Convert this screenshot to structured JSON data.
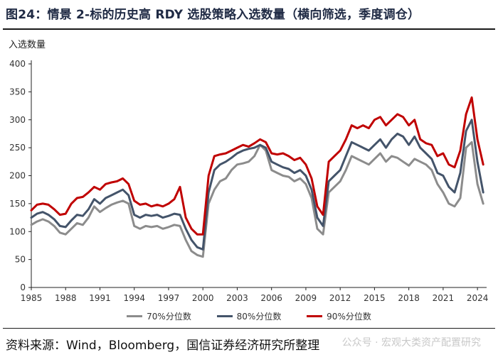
{
  "header": {
    "title": "图24：情景 2-标的历史高 RDY 选股策略入选数量（横向筛选，季度调仓）"
  },
  "footer": {
    "source": "资料来源：Wind，Bloomberg，国信证券经济研究所整理",
    "watermark": "公众号 · 宏观大类资产配置研究"
  },
  "colors": {
    "p70": "#8c8c8c",
    "p80": "#44546a",
    "p90": "#c00000"
  },
  "chart_data": {
    "type": "line",
    "title": "",
    "ylabel": "入选数量",
    "xlabel": "",
    "ylim": [
      0,
      400
    ],
    "yticks": [
      "0",
      "50",
      "100",
      "150",
      "200",
      "250",
      "300",
      "350",
      "400"
    ],
    "xlim": [
      1985,
      2024.8
    ],
    "xticks": [
      "1985",
      "1988",
      "1991",
      "1994",
      "1997",
      "2000",
      "2003",
      "2006",
      "2009",
      "2012",
      "2015",
      "2018",
      "2021",
      "2024"
    ],
    "grid": false,
    "legend_position": "bottom",
    "series": [
      {
        "name": "70%分位数",
        "color": "#8c8c8c",
        "x": [
          1985,
          1985.5,
          1986,
          1986.5,
          1987,
          1987.5,
          1988,
          1988.5,
          1989,
          1989.5,
          1990,
          1990.5,
          1991,
          1991.5,
          1992,
          1992.5,
          1993,
          1993.5,
          1994,
          1994.5,
          1995,
          1995.5,
          1996,
          1996.5,
          1997,
          1997.5,
          1998,
          1998.5,
          1999,
          1999.5,
          2000,
          2000.5,
          2001,
          2001.5,
          2002,
          2002.5,
          2003,
          2003.5,
          2004,
          2004.5,
          2005,
          2005.5,
          2006,
          2006.5,
          2007,
          2007.5,
          2008,
          2008.5,
          2009,
          2009.5,
          2010,
          2010.5,
          2011,
          2011.5,
          2012,
          2012.5,
          2013,
          2013.5,
          2014,
          2014.5,
          2015,
          2015.5,
          2016,
          2016.5,
          2017,
          2017.5,
          2018,
          2018.5,
          2019,
          2019.5,
          2020,
          2020.5,
          2021,
          2021.5,
          2022,
          2022.5,
          2023,
          2023.5,
          2024,
          2024.5
        ],
        "values": [
          112,
          118,
          122,
          118,
          110,
          98,
          95,
          105,
          115,
          112,
          125,
          145,
          135,
          142,
          148,
          152,
          155,
          150,
          110,
          105,
          110,
          108,
          110,
          105,
          108,
          112,
          110,
          85,
          65,
          58,
          55,
          150,
          175,
          190,
          195,
          210,
          220,
          222,
          225,
          235,
          255,
          245,
          210,
          205,
          200,
          198,
          190,
          195,
          185,
          160,
          105,
          95,
          170,
          180,
          190,
          210,
          235,
          230,
          225,
          220,
          230,
          240,
          225,
          235,
          232,
          225,
          218,
          230,
          225,
          220,
          210,
          185,
          170,
          150,
          145,
          160,
          250,
          260,
          185,
          150
        ]
      },
      {
        "name": "80%分位数",
        "color": "#44546a",
        "x": [
          1985,
          1985.5,
          1986,
          1986.5,
          1987,
          1987.5,
          1988,
          1988.5,
          1989,
          1989.5,
          1990,
          1990.5,
          1991,
          1991.5,
          1992,
          1992.5,
          1993,
          1993.5,
          1994,
          1994.5,
          1995,
          1995.5,
          1996,
          1996.5,
          1997,
          1997.5,
          1998,
          1998.5,
          1999,
          1999.5,
          2000,
          2000.5,
          2001,
          2001.5,
          2002,
          2002.5,
          2003,
          2003.5,
          2004,
          2004.5,
          2005,
          2005.5,
          2006,
          2006.5,
          2007,
          2007.5,
          2008,
          2008.5,
          2009,
          2009.5,
          2010,
          2010.5,
          2011,
          2011.5,
          2012,
          2012.5,
          2013,
          2013.5,
          2014,
          2014.5,
          2015,
          2015.5,
          2016,
          2016.5,
          2017,
          2017.5,
          2018,
          2018.5,
          2019,
          2019.5,
          2020,
          2020.5,
          2021,
          2021.5,
          2022,
          2022.5,
          2023,
          2023.5,
          2024,
          2024.5
        ],
        "values": [
          125,
          132,
          135,
          130,
          122,
          110,
          108,
          120,
          130,
          128,
          140,
          158,
          150,
          160,
          165,
          170,
          175,
          165,
          130,
          125,
          130,
          128,
          130,
          125,
          128,
          132,
          130,
          105,
          85,
          72,
          68,
          170,
          210,
          220,
          225,
          232,
          240,
          245,
          248,
          250,
          255,
          250,
          225,
          220,
          215,
          212,
          205,
          210,
          200,
          175,
          125,
          110,
          190,
          200,
          210,
          235,
          260,
          255,
          250,
          245,
          255,
          265,
          250,
          265,
          275,
          270,
          255,
          270,
          250,
          240,
          230,
          205,
          200,
          180,
          170,
          205,
          280,
          300,
          225,
          170
        ]
      },
      {
        "name": "90%分位数",
        "color": "#c00000",
        "x": [
          1985,
          1985.5,
          1986,
          1986.5,
          1987,
          1987.5,
          1988,
          1988.5,
          1989,
          1989.5,
          1990,
          1990.5,
          1991,
          1991.5,
          1992,
          1992.5,
          1993,
          1993.5,
          1994,
          1994.5,
          1995,
          1995.5,
          1996,
          1996.5,
          1997,
          1997.5,
          1998,
          1998.5,
          1999,
          1999.5,
          2000,
          2000.5,
          2001,
          2001.5,
          2002,
          2002.5,
          2003,
          2003.5,
          2004,
          2004.5,
          2005,
          2005.5,
          2006,
          2006.5,
          2007,
          2007.5,
          2008,
          2008.5,
          2009,
          2009.5,
          2010,
          2010.5,
          2011,
          2011.5,
          2012,
          2012.5,
          2013,
          2013.5,
          2014,
          2014.5,
          2015,
          2015.5,
          2016,
          2016.5,
          2017,
          2017.5,
          2018,
          2018.5,
          2019,
          2019.5,
          2020,
          2020.5,
          2021,
          2021.5,
          2022,
          2022.5,
          2023,
          2023.5,
          2024,
          2024.5
        ],
        "values": [
          138,
          148,
          150,
          148,
          140,
          130,
          132,
          150,
          160,
          162,
          170,
          180,
          175,
          185,
          188,
          190,
          195,
          185,
          155,
          148,
          150,
          145,
          148,
          145,
          150,
          158,
          180,
          125,
          105,
          95,
          95,
          200,
          235,
          238,
          240,
          245,
          250,
          255,
          252,
          258,
          265,
          260,
          240,
          238,
          240,
          235,
          228,
          232,
          220,
          195,
          145,
          130,
          225,
          235,
          245,
          265,
          290,
          285,
          290,
          285,
          300,
          305,
          290,
          300,
          310,
          305,
          290,
          300,
          265,
          258,
          255,
          235,
          240,
          220,
          215,
          245,
          310,
          340,
          265,
          220
        ]
      }
    ]
  }
}
